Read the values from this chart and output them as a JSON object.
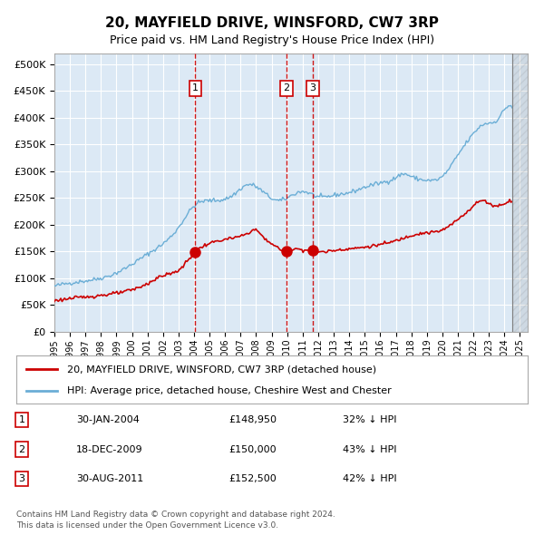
{
  "title": "20, MAYFIELD DRIVE, WINSFORD, CW7 3RP",
  "subtitle": "Price paid vs. HM Land Registry's House Price Index (HPI)",
  "legend_line1": "20, MAYFIELD DRIVE, WINSFORD, CW7 3RP (detached house)",
  "legend_line2": "HPI: Average price, detached house, Cheshire West and Chester",
  "footer1": "Contains HM Land Registry data © Crown copyright and database right 2024.",
  "footer2": "This data is licensed under the Open Government Licence v3.0.",
  "transactions": [
    {
      "num": 1,
      "date": "30-JAN-2004",
      "price": 148950,
      "year": 2004.08,
      "pct": "32% ↓ HPI"
    },
    {
      "num": 2,
      "date": "18-DEC-2009",
      "price": 150000,
      "year": 2009.96,
      "pct": "43% ↓ HPI"
    },
    {
      "num": 3,
      "date": "30-AUG-2011",
      "price": 152500,
      "year": 2011.66,
      "pct": "42% ↓ HPI"
    }
  ],
  "hpi_color": "#6baed6",
  "price_color": "#cc0000",
  "transaction_color": "#cc0000",
  "vline_color": "#cc0000",
  "bg_color": "#dce9f5",
  "grid_color": "#ffffff",
  "ylim": [
    0,
    520000
  ],
  "xlim_start": 1995.0,
  "xlim_end": 2025.5
}
